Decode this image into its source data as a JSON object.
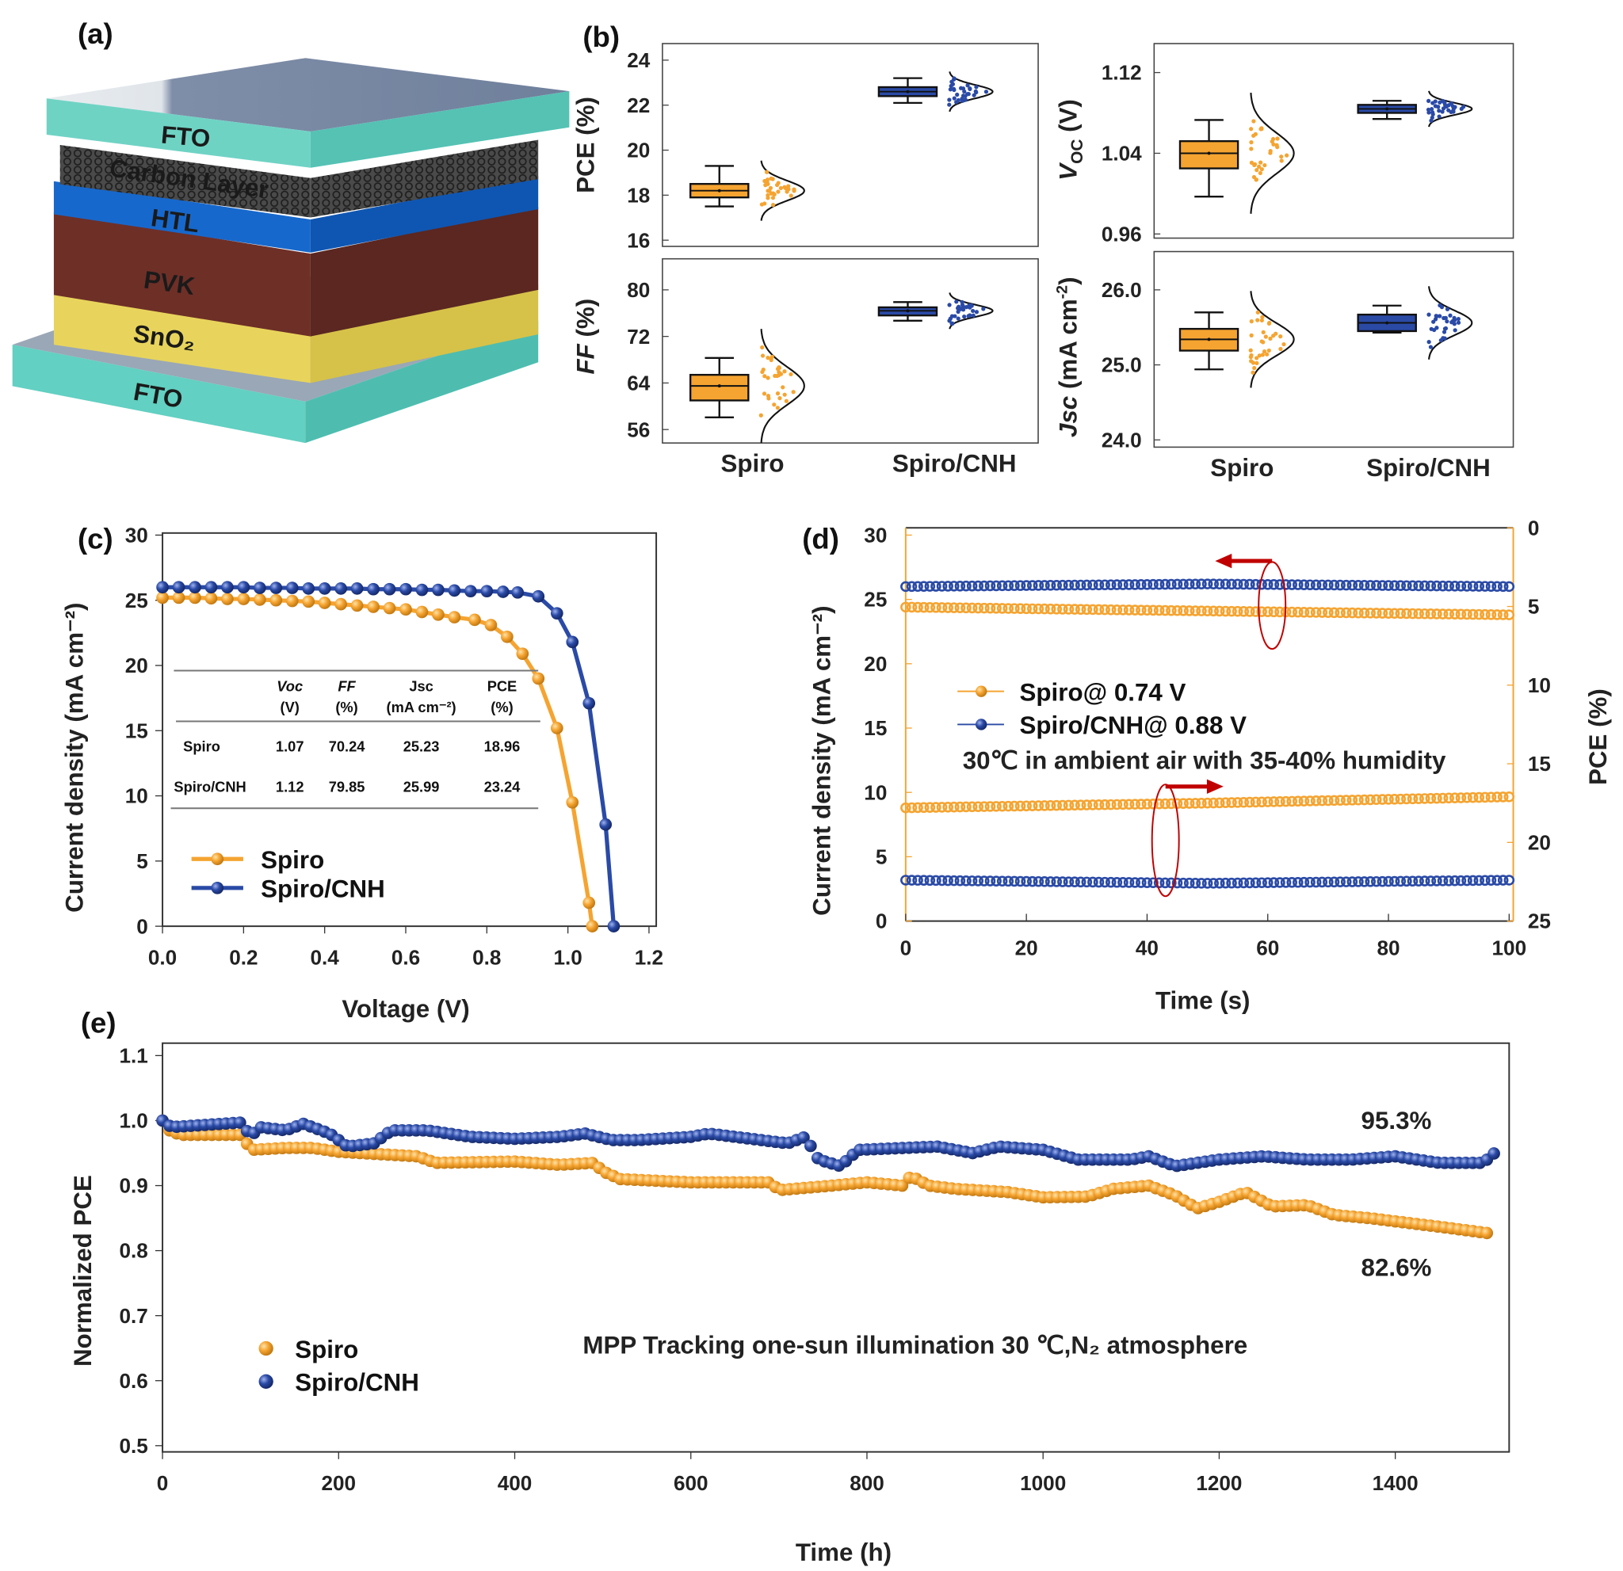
{
  "panel_labels": [
    "(a)",
    "(b)",
    "(c)",
    "(d)",
    "(e)"
  ],
  "panel_a": {
    "layers": [
      "FTO",
      "Carbon Layer",
      "HTL",
      "PVK",
      "SnO₂",
      "FTO"
    ]
  },
  "colors": {
    "spiro": "#f5a431",
    "spiro_cnh": "#2a4aa6",
    "annotation": "#c00000",
    "axis_d": "#f5a431"
  },
  "chart_data": [
    {
      "type": "box",
      "metric": "PCE",
      "ylabel_parts": [
        "PCE (%)"
      ],
      "ylim": [
        16,
        24
      ],
      "yticks": [
        "16",
        "18",
        "20",
        "22",
        "24"
      ],
      "categories": [
        "Spiro",
        "Spiro/CNH"
      ],
      "series": [
        {
          "name": "Spiro",
          "min": 17.5,
          "q1": 17.9,
          "median": 18.2,
          "q3": 18.5,
          "max": 19.3
        },
        {
          "name": "Spiro/CNH",
          "min": 22.1,
          "q1": 22.4,
          "median": 22.6,
          "q3": 22.8,
          "max": 23.2
        }
      ]
    },
    {
      "type": "box",
      "metric": "FF",
      "ylabel_parts": [
        "FF",
        " (%)"
      ],
      "ylim": [
        56,
        80
      ],
      "yticks": [
        "56",
        "64",
        "72",
        "80"
      ],
      "categories": [
        "Spiro",
        "Spiro/CNH"
      ],
      "series": [
        {
          "name": "Spiro",
          "min": 58.1,
          "q1": 61.0,
          "median": 63.5,
          "q3": 65.4,
          "max": 68.3
        },
        {
          "name": "Spiro/CNH",
          "min": 74.7,
          "q1": 75.6,
          "median": 76.4,
          "q3": 77.0,
          "max": 77.9
        }
      ]
    },
    {
      "type": "box",
      "metric": "Voc",
      "ylabel_parts": [
        "V",
        "OC",
        " (V)"
      ],
      "ylim": [
        0.96,
        1.12
      ],
      "yticks": [
        "0.96",
        "1.04",
        "1.12"
      ],
      "categories": [
        "Spiro",
        "Spiro/CNH"
      ],
      "series": [
        {
          "name": "Spiro",
          "min": 0.997,
          "q1": 1.025,
          "median": 1.04,
          "q3": 1.052,
          "max": 1.073
        },
        {
          "name": "Spiro/CNH",
          "min": 1.074,
          "q1": 1.08,
          "median": 1.084,
          "q3": 1.088,
          "max": 1.092
        }
      ]
    },
    {
      "type": "box",
      "metric": "Jsc",
      "ylabel_parts": [
        "Jsc",
        " (mA cm",
        "-2",
        ")"
      ],
      "ylim": [
        24,
        26
      ],
      "yticks": [
        "24.0",
        "25.0",
        "26.0"
      ],
      "categories": [
        "Spiro",
        "Spiro/CNH"
      ],
      "series": [
        {
          "name": "Spiro",
          "min": 24.94,
          "q1": 25.19,
          "median": 25.34,
          "q3": 25.48,
          "max": 25.7
        },
        {
          "name": "Spiro/CNH",
          "min": 25.43,
          "q1": 25.45,
          "median": 25.56,
          "q3": 25.67,
          "max": 25.79
        }
      ]
    },
    {
      "type": "line",
      "xlabel": "Voltage (V)",
      "ylabel": "Current density (mA cm⁻²)",
      "xlim": [
        0,
        1.2
      ],
      "ylim": [
        0,
        30
      ],
      "xticks": [
        "0.0",
        "0.2",
        "0.4",
        "0.6",
        "0.8",
        "1.0",
        "1.2"
      ],
      "yticks": [
        "0",
        "5",
        "10",
        "15",
        "20",
        "25",
        "30"
      ],
      "series": [
        {
          "name": "Spiro",
          "points": [
            [
              0,
              25.2
            ],
            [
              0.04,
              25.2
            ],
            [
              0.08,
              25.2
            ],
            [
              0.12,
              25.15
            ],
            [
              0.16,
              25.1
            ],
            [
              0.2,
              25.1
            ],
            [
              0.24,
              25.05
            ],
            [
              0.28,
              25.0
            ],
            [
              0.32,
              24.95
            ],
            [
              0.36,
              24.9
            ],
            [
              0.4,
              24.8
            ],
            [
              0.44,
              24.7
            ],
            [
              0.48,
              24.6
            ],
            [
              0.52,
              24.5
            ],
            [
              0.56,
              24.4
            ],
            [
              0.6,
              24.3
            ],
            [
              0.64,
              24.1
            ],
            [
              0.68,
              23.9
            ],
            [
              0.72,
              23.7
            ],
            [
              0.77,
              23.5
            ],
            [
              0.81,
              23.1
            ],
            [
              0.85,
              22.2
            ],
            [
              0.888,
              20.9
            ],
            [
              0.927,
              19.0
            ],
            [
              0.973,
              15.2
            ],
            [
              1.011,
              9.5
            ],
            [
              1.052,
              1.8
            ],
            [
              1.06,
              0
            ]
          ]
        },
        {
          "name": "Spiro/CNH",
          "points": [
            [
              0,
              26.0
            ],
            [
              0.04,
              26.0
            ],
            [
              0.08,
              26.0
            ],
            [
              0.12,
              26.0
            ],
            [
              0.16,
              26.0
            ],
            [
              0.2,
              26.0
            ],
            [
              0.24,
              25.95
            ],
            [
              0.28,
              25.95
            ],
            [
              0.32,
              25.95
            ],
            [
              0.36,
              25.9
            ],
            [
              0.4,
              25.9
            ],
            [
              0.44,
              25.9
            ],
            [
              0.48,
              25.9
            ],
            [
              0.52,
              25.85
            ],
            [
              0.56,
              25.85
            ],
            [
              0.6,
              25.85
            ],
            [
              0.64,
              25.8
            ],
            [
              0.68,
              25.8
            ],
            [
              0.72,
              25.75
            ],
            [
              0.76,
              25.7
            ],
            [
              0.8,
              25.7
            ],
            [
              0.84,
              25.65
            ],
            [
              0.876,
              25.6
            ],
            [
              0.927,
              25.3
            ],
            [
              0.973,
              24.0
            ],
            [
              1.011,
              21.8
            ],
            [
              1.052,
              17.1
            ],
            [
              1.093,
              7.8
            ],
            [
              1.113,
              0
            ]
          ]
        }
      ],
      "table": {
        "headers": [
          [
            "Voc",
            "(V)"
          ],
          [
            "FF",
            "(%)"
          ],
          [
            "Jsc",
            "(mA cm⁻²)"
          ],
          [
            "PCE",
            "(%)"
          ]
        ],
        "rows": [
          {
            "label": "Spiro",
            "values": [
              "1.07",
              "70.24",
              "25.23",
              "18.96"
            ]
          },
          {
            "label": "Spiro/CNH",
            "values": [
              "1.12",
              "79.85",
              "25.99",
              "23.24"
            ]
          }
        ]
      }
    },
    {
      "type": "line",
      "xlabel": "Time (s)",
      "ylabel": "Current density (mA cm⁻²)",
      "y2label": "PCE (%)",
      "xlim": [
        0,
        100
      ],
      "ylim": [
        0,
        30
      ],
      "y2lim": [
        0,
        25
      ],
      "y2_inverted": true,
      "xticks": [
        "0",
        "20",
        "40",
        "60",
        "80",
        "100"
      ],
      "yticks": [
        "0",
        "5",
        "10",
        "15",
        "20",
        "25",
        "30"
      ],
      "y2ticks": [
        "0",
        "5",
        "10",
        "15",
        "20",
        "25"
      ],
      "legend": [
        "Spiro@ 0.74 V",
        "Spiro/CNH@ 0.88 V"
      ],
      "annotation": "30℃  in ambient air with 35-40% humidity",
      "series": [
        {
          "name": "Spiro@ 0.74 V",
          "current": [
            [
              0,
              24.4
            ],
            [
              50,
              24.1
            ],
            [
              100,
              23.8
            ]
          ],
          "pce": [
            [
              0,
              17.8
            ],
            [
              50,
              17.5
            ],
            [
              100,
              17.1
            ]
          ]
        },
        {
          "name": "Spiro/CNH@ 0.88 V",
          "current": [
            [
              0,
              26.0
            ],
            [
              50,
              26.2
            ],
            [
              100,
              26.0
            ]
          ],
          "pce": [
            [
              0,
              22.4
            ],
            [
              50,
              22.6
            ],
            [
              100,
              22.4
            ]
          ]
        }
      ]
    },
    {
      "type": "scatter",
      "xlabel": "Time (h)",
      "ylabel": "Normalized PCE",
      "xlim": [
        0,
        1530
      ],
      "ylim": [
        0.5,
        1.1
      ],
      "xticks": [
        "0",
        "200",
        "400",
        "600",
        "800",
        "1000",
        "1200",
        "1400"
      ],
      "yticks": [
        "0.5",
        "0.6",
        "0.7",
        "0.8",
        "0.9",
        "1.0",
        "1.1"
      ],
      "legend": [
        "Spiro",
        "Spiro/CNH"
      ],
      "annotation": "MPP Tracking one-sun illumination 30 ℃,N₂ atmosphere",
      "end_labels": [
        "95.3%",
        "82.6%"
      ],
      "series": [
        {
          "name": "Spiro",
          "points": [
            [
              0,
              1.0
            ],
            [
              8,
              0.985
            ],
            [
              20,
              0.978
            ],
            [
              90,
              0.978
            ],
            [
              100,
              0.955
            ],
            [
              140,
              0.958
            ],
            [
              170,
              0.958
            ],
            [
              200,
              0.952
            ],
            [
              250,
              0.948
            ],
            [
              290,
              0.945
            ],
            [
              310,
              0.935
            ],
            [
              400,
              0.937
            ],
            [
              450,
              0.932
            ],
            [
              490,
              0.935
            ],
            [
              500,
              0.922
            ],
            [
              520,
              0.91
            ],
            [
              600,
              0.905
            ],
            [
              690,
              0.905
            ],
            [
              700,
              0.893
            ],
            [
              760,
              0.9
            ],
            [
              800,
              0.905
            ],
            [
              840,
              0.9
            ],
            [
              850,
              0.915
            ],
            [
              870,
              0.9
            ],
            [
              900,
              0.895
            ],
            [
              960,
              0.89
            ],
            [
              1000,
              0.882
            ],
            [
              1050,
              0.883
            ],
            [
              1080,
              0.895
            ],
            [
              1120,
              0.9
            ],
            [
              1150,
              0.885
            ],
            [
              1175,
              0.865
            ],
            [
              1200,
              0.875
            ],
            [
              1230,
              0.89
            ],
            [
              1260,
              0.868
            ],
            [
              1300,
              0.87
            ],
            [
              1330,
              0.855
            ],
            [
              1370,
              0.85
            ],
            [
              1400,
              0.845
            ],
            [
              1460,
              0.835
            ],
            [
              1510,
              0.826
            ]
          ]
        },
        {
          "name": "Spiro/CNH",
          "points": [
            [
              0,
              1.0
            ],
            [
              10,
              0.99
            ],
            [
              90,
              0.997
            ],
            [
              100,
              0.975
            ],
            [
              110,
              0.99
            ],
            [
              140,
              0.985
            ],
            [
              160,
              0.995
            ],
            [
              190,
              0.98
            ],
            [
              210,
              0.96
            ],
            [
              240,
              0.965
            ],
            [
              260,
              0.985
            ],
            [
              300,
              0.985
            ],
            [
              350,
              0.975
            ],
            [
              400,
              0.972
            ],
            [
              450,
              0.975
            ],
            [
              480,
              0.98
            ],
            [
              510,
              0.97
            ],
            [
              540,
              0.97
            ],
            [
              600,
              0.975
            ],
            [
              620,
              0.98
            ],
            [
              680,
              0.97
            ],
            [
              710,
              0.965
            ],
            [
              730,
              0.975
            ],
            [
              745,
              0.94
            ],
            [
              770,
              0.93
            ],
            [
              790,
              0.955
            ],
            [
              880,
              0.96
            ],
            [
              920,
              0.95
            ],
            [
              950,
              0.96
            ],
            [
              1000,
              0.955
            ],
            [
              1040,
              0.94
            ],
            [
              1100,
              0.94
            ],
            [
              1120,
              0.945
            ],
            [
              1150,
              0.93
            ],
            [
              1200,
              0.94
            ],
            [
              1250,
              0.945
            ],
            [
              1300,
              0.94
            ],
            [
              1350,
              0.94
            ],
            [
              1400,
              0.945
            ],
            [
              1450,
              0.935
            ],
            [
              1500,
              0.935
            ],
            [
              1515,
              0.953
            ]
          ]
        }
      ]
    }
  ]
}
